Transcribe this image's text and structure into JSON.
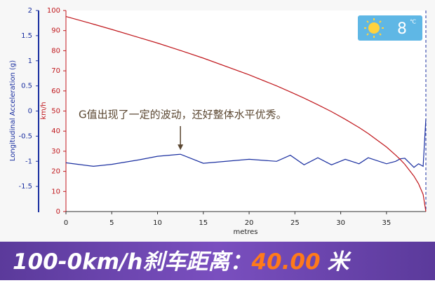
{
  "chart_data": {
    "type": "line",
    "x_label": "metres",
    "y_label": "Longitudinal Acceleration (g)",
    "y2_label": "km/h",
    "annotation": "G值出现了一定的波动，还好整体水平优秀。",
    "annotation_x": 12.5,
    "x": [
      0,
      3,
      5,
      8,
      10,
      12.5,
      15,
      20,
      23,
      24.5,
      26,
      27.5,
      29,
      30.5,
      32,
      33,
      35,
      36,
      36.5,
      37,
      38,
      38.5,
      39,
      39.3
    ],
    "series": [
      {
        "name": "Longitudinal Acceleration",
        "color": "#1a2fa0",
        "axis": "y",
        "values": [
          -1.03,
          -1.1,
          -1.06,
          -0.97,
          -0.9,
          -0.86,
          -1.04,
          -0.96,
          -1.0,
          -0.88,
          -1.07,
          -0.93,
          -1.07,
          -0.96,
          -1.05,
          -0.93,
          -1.05,
          -1.0,
          -0.95,
          -0.94,
          -1.12,
          -1.05,
          -1.1,
          -0.15
        ]
      },
      {
        "name": "Speed",
        "color": "#c0171c",
        "axis": "y2",
        "values": [
          97,
          93.2,
          90.6,
          86.5,
          83.8,
          80.1,
          76.3,
          68.0,
          62.5,
          59.5,
          56.4,
          53.1,
          49.7,
          45.9,
          41.8,
          38.8,
          32.1,
          28.1,
          25.9,
          23.5,
          17.6,
          13.8,
          8.5,
          0
        ]
      }
    ],
    "xlim": [
      0,
      39.3
    ],
    "xticks": [
      0,
      5,
      10,
      15,
      20,
      25,
      30,
      35
    ],
    "ylim": [
      -2,
      2
    ],
    "yticks": [
      2,
      1.5,
      1,
      0.5,
      0,
      -0.5,
      -1,
      -1.5
    ],
    "y2lim": [
      0,
      100
    ],
    "y2ticks": [
      0,
      10,
      20,
      30,
      40,
      50,
      60,
      70,
      80,
      90,
      100
    ],
    "grid": false
  },
  "badge": {
    "value": "8",
    "unit": "℃"
  },
  "banner": {
    "text": "100-0km/h刹车距离：",
    "value": "40.00",
    "unit": "米"
  }
}
